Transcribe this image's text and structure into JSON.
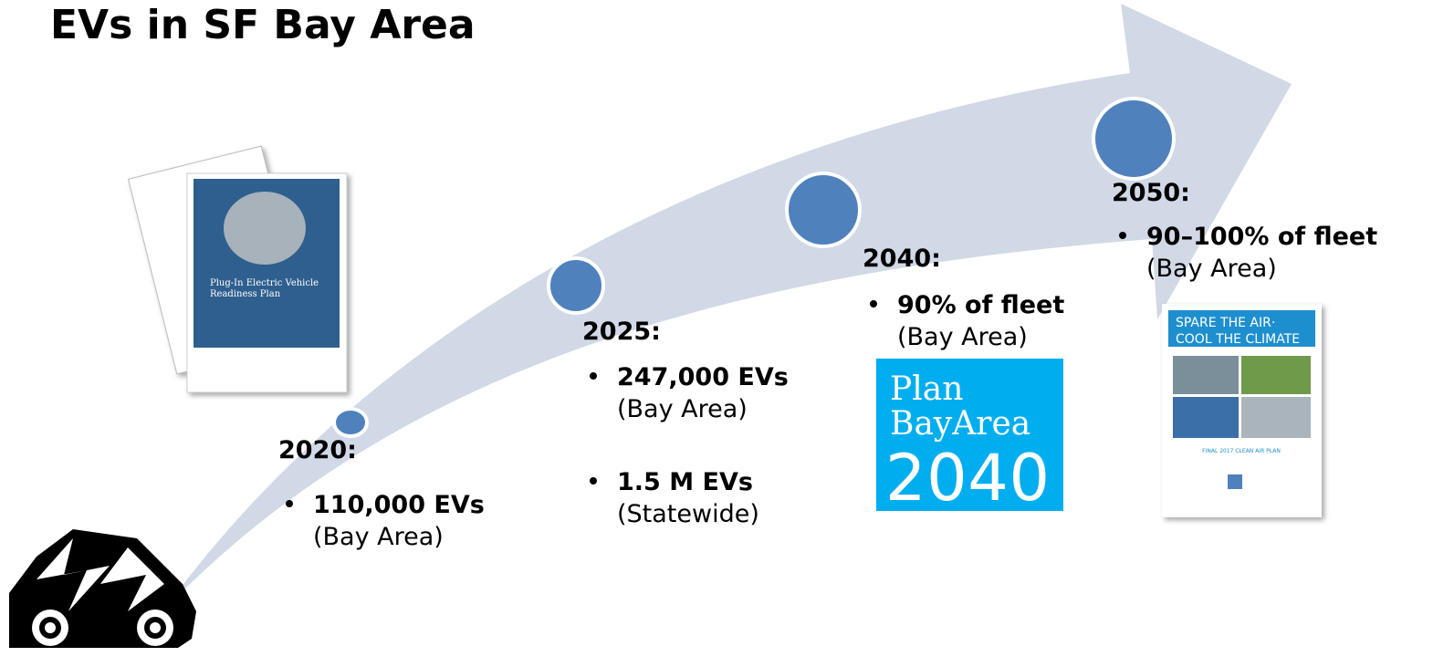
{
  "header": {
    "title": "EVs in SF Bay Area"
  },
  "milestones": [
    {
      "year": "2020:",
      "items": [
        {
          "value": "110,000 EVs",
          "scope": "(Bay Area)"
        }
      ]
    },
    {
      "year": "2025:",
      "items": [
        {
          "value": "247,000 EVs",
          "scope": "(Bay Area)"
        },
        {
          "value": "1.5 M EVs",
          "scope": "(Statewide)"
        }
      ]
    },
    {
      "year": "2040:",
      "items": [
        {
          "value": "90% of fleet",
          "scope": "(Bay Area)"
        }
      ]
    },
    {
      "year": "2050:",
      "items": [
        {
          "value": "90–100% of fleet",
          "scope": "(Bay Area)"
        }
      ]
    }
  ],
  "documents": {
    "pev_plan": {
      "title": "Plug-In Electric Vehicle Readiness Plan"
    },
    "plan_bay_area": {
      "lines": [
        "Plan",
        "BayArea",
        "2040"
      ]
    },
    "clean_air_plan": {
      "lines": [
        "SPARE THE AIR·",
        "COOL THE CLIMATE"
      ],
      "footer": "FINAL 2017 CLEAN AIR PLAN"
    }
  }
}
